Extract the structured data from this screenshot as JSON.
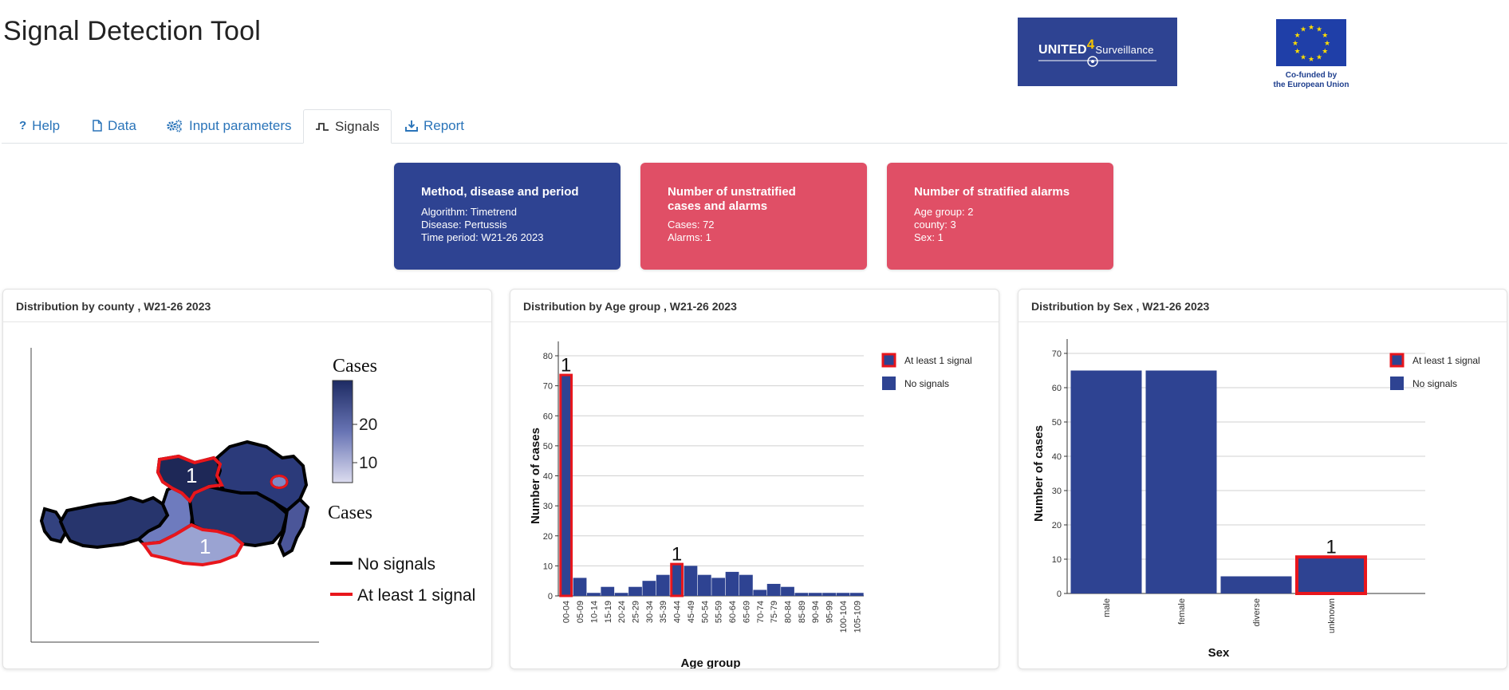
{
  "app": {
    "title": "Signal Detection Tool",
    "logo_united_text": "UNITED",
    "logo_united_sup": "4",
    "logo_united_sub": "Surveillance",
    "logo_eu_text_1": "Co-funded by",
    "logo_eu_text_2": "the European Union"
  },
  "tabs": [
    {
      "label": "Help",
      "icon": "question-icon",
      "active": false
    },
    {
      "label": "Data",
      "icon": "file-icon",
      "active": false
    },
    {
      "label": "Input parameters",
      "icon": "gears-icon",
      "active": false
    },
    {
      "label": "Signals",
      "icon": "wave-icon",
      "active": true
    },
    {
      "label": "Report",
      "icon": "download-icon",
      "active": false
    }
  ],
  "cards": {
    "method": {
      "title": "Method, disease and period",
      "lines": [
        "Algorithm: Timetrend",
        "Disease: Pertussis",
        "Time period: W21-26 2023"
      ]
    },
    "unstratified": {
      "title_1": "Number of unstratified",
      "title_2": "cases and alarms",
      "lines": [
        "Cases: 72",
        "Alarms: 1"
      ]
    },
    "stratified": {
      "title": "Number of stratified alarms",
      "lines": [
        "Age group: 2",
        "county: 3",
        "Sex: 1"
      ]
    }
  },
  "colors": {
    "navy": "#2e4392",
    "card_red": "#e04f66",
    "signal_red": "#e8161c",
    "tab_link": "#2a74b9"
  },
  "map_panel": {
    "title": "Distribution by county , W21-26 2023",
    "legend_title_1": "Cases",
    "legend_ticks": [
      "20",
      "10"
    ],
    "legend_title_2": "Cases",
    "legend_items": [
      "No signals",
      "At least 1 signal"
    ],
    "region_labels": [
      "1",
      "1"
    ]
  },
  "panels": {
    "age_title": "Distribution by Age group , W21-26 2023",
    "sex_title": "Distribution by Sex , W21-26 2023"
  },
  "chart_data": [
    {
      "type": "bar",
      "xlabel": "Age group",
      "ylabel": "Number of cases",
      "ylim": [
        0,
        80
      ],
      "yticks": [
        0,
        10,
        20,
        30,
        40,
        50,
        60,
        70,
        80
      ],
      "grid": true,
      "legend": [
        "At least 1 signal",
        "No signals"
      ],
      "legend_position": "right",
      "categories": [
        "00-04",
        "05-09",
        "10-14",
        "15-19",
        "20-24",
        "25-29",
        "30-34",
        "35-39",
        "40-44",
        "45-49",
        "50-54",
        "55-59",
        "60-64",
        "65-69",
        "70-74",
        "75-79",
        "80-84",
        "85-89",
        "90-94",
        "95-99",
        "100-104",
        "105-109"
      ],
      "values": [
        74,
        6,
        1,
        3,
        1,
        3,
        5,
        7,
        11,
        10,
        7,
        6,
        8,
        7,
        2,
        4,
        3,
        1,
        1,
        1,
        1,
        1
      ],
      "signal_counts": [
        "1",
        "",
        "",
        "",
        "",
        "",
        "",
        "",
        "1",
        "",
        "",
        "",
        "",
        "",
        "",
        "",
        "",
        "",
        "",
        "",
        "",
        ""
      ]
    },
    {
      "type": "bar",
      "xlabel": "Sex",
      "ylabel": "Number of cases",
      "ylim": [
        0,
        70
      ],
      "yticks": [
        0,
        10,
        20,
        30,
        40,
        50,
        60,
        70
      ],
      "grid": true,
      "legend": [
        "At least 1 signal",
        "No signals"
      ],
      "legend_position": "right",
      "categories": [
        "male",
        "female",
        "diverse",
        "unknown"
      ],
      "values": [
        65,
        65,
        5,
        11
      ],
      "signal_counts": [
        "",
        "",
        "",
        "1"
      ]
    }
  ]
}
